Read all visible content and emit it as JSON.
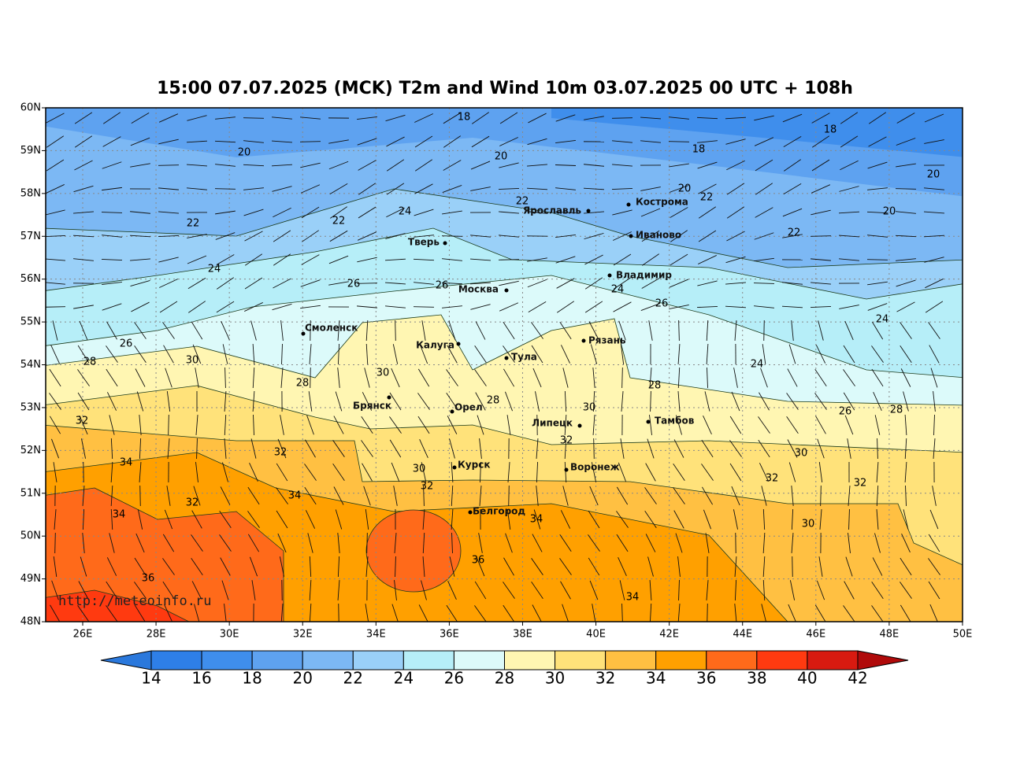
{
  "title": "15:00 07.07.2025 (MCK) T2m and Wind 10m 03.07.2025 00 UTC + 108h",
  "lat_labels": [
    "60N",
    "59N",
    "58N",
    "57N",
    "56N",
    "55N",
    "54N",
    "53N",
    "52N",
    "51N",
    "50N",
    "49N",
    "48N"
  ],
  "lon_labels": [
    "26E",
    "28E",
    "30E",
    "32E",
    "34E",
    "36E",
    "38E",
    "40E",
    "42E",
    "44E",
    "46E",
    "48E",
    "50E"
  ],
  "cities": [
    "Ярославль",
    "Кострома",
    "Иваново",
    "Тверь",
    "Москва",
    "Владимир",
    "Смоленск",
    "Калуга",
    "Рязань",
    "Тула",
    "Брянск",
    "Орел",
    "Липецк",
    "Тамбов",
    "Курск",
    "Воронеж",
    "Белгород"
  ],
  "contour_labels": [
    18,
    20,
    20,
    18,
    18,
    20,
    20,
    22,
    22,
    20,
    22,
    22,
    24,
    22,
    24,
    26,
    26,
    24,
    26,
    24,
    26,
    28,
    30,
    24,
    28,
    30,
    28,
    28,
    30,
    26,
    28,
    32,
    32,
    32,
    30,
    34,
    30,
    32,
    32,
    34,
    32,
    32,
    34,
    34,
    30,
    36,
    36,
    34
  ],
  "watermark": "http://meteoinfo.ru",
  "colorbar": {
    "ticks": [
      14,
      16,
      18,
      20,
      22,
      24,
      26,
      28,
      30,
      32,
      34,
      36,
      38,
      40,
      42
    ],
    "colors": [
      "#2a78dc",
      "#2e7fe8",
      "#3f8eec",
      "#5ea2f0",
      "#7cb8f4",
      "#9ad0f8",
      "#b6eef8",
      "#dcfafa",
      "#fff6b2",
      "#ffe27a",
      "#ffc042",
      "#ffa000",
      "#ff6a1a",
      "#ff3a10",
      "#d81a10",
      "#b00a0a"
    ]
  }
}
